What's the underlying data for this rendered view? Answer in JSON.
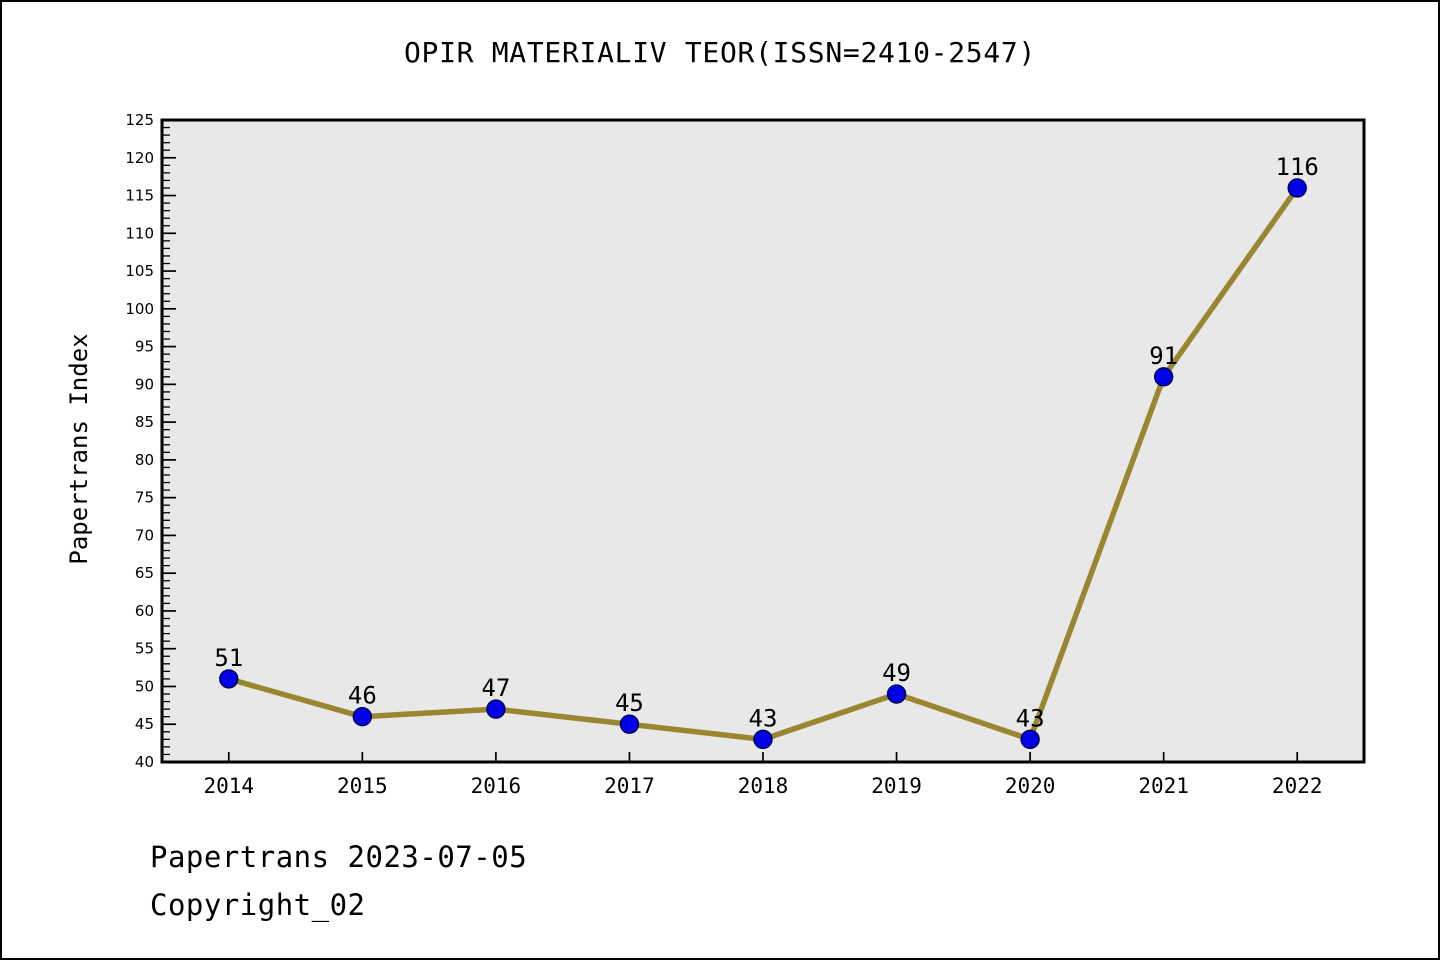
{
  "chart_data": {
    "type": "line",
    "title": "OPIR MATERIALIV TEOR(ISSN=2410-2547)",
    "x": [
      2014,
      2015,
      2016,
      2017,
      2018,
      2019,
      2020,
      2021,
      2022
    ],
    "values": [
      51,
      46,
      47,
      45,
      43,
      49,
      43,
      91,
      116
    ],
    "xlabel": "",
    "ylabel": "Papertrans Index",
    "ylim": [
      40,
      125
    ],
    "xlim": [
      2013.5,
      2022.5
    ],
    "y_ticks": [
      40,
      45,
      50,
      55,
      60,
      65,
      70,
      75,
      80,
      85,
      90,
      95,
      100,
      105,
      110,
      115,
      120,
      125
    ],
    "y_minor_step": 1,
    "grid": false,
    "legend": "none",
    "point_labels": [
      "51",
      "46",
      "47",
      "45",
      "43",
      "49",
      "43",
      "91",
      "116"
    ],
    "colors": {
      "line": "#9A8630",
      "marker": "#0000E6",
      "marker_edge": "#00004D",
      "plot_bg": "#E8E8E8",
      "frame": "#000000",
      "text": "#000000"
    }
  },
  "footer": {
    "line1": "Papertrans 2023-07-05",
    "line2": "Copyright_02"
  }
}
